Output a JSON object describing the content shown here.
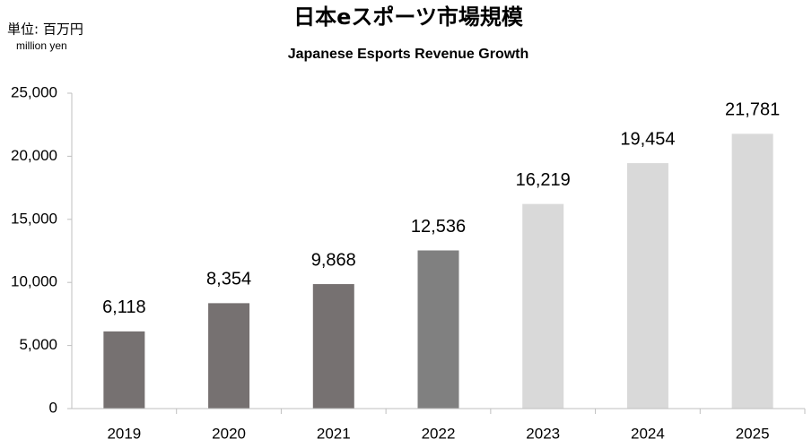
{
  "chart_data": {
    "type": "bar",
    "title": "日本eスポーツ市場規模",
    "subtitle": "Japanese Esports Revenue Growth",
    "unit_label": "単位: 百万円",
    "unit_label_en": "million yen",
    "categories": [
      "2019",
      "2020",
      "2021",
      "2022",
      "2023",
      "2024",
      "2025"
    ],
    "values": [
      6118,
      8354,
      9868,
      12536,
      16219,
      19454,
      21781
    ],
    "value_labels": [
      "6,118",
      "8,354",
      "9,868",
      "12,536",
      "16,219",
      "19,454",
      "21,781"
    ],
    "colors": [
      "#767171",
      "#767171",
      "#767171",
      "#808080",
      "#d9d9d9",
      "#d9d9d9",
      "#d9d9d9"
    ],
    "ylim": [
      0,
      25000
    ],
    "yticks": [
      0,
      {
        "value": 5000,
        "label": "5,000"
      },
      {
        "value": 10000,
        "label": "10,000"
      },
      {
        "value": 15000,
        "label": "15,000"
      },
      {
        "value": 20000,
        "label": "20,000"
      },
      {
        "value": 25000,
        "label": "25,000"
      }
    ],
    "grid": false
  }
}
